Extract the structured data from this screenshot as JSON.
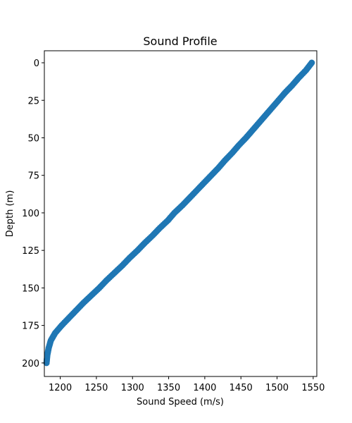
{
  "chart_data": {
    "type": "scatter",
    "title": "Sound Profile",
    "xlabel": "Sound Speed (m/s)",
    "ylabel": "Depth (m)",
    "xlim": [
      1178,
      1555
    ],
    "ylim": [
      209,
      -8
    ],
    "y_inverted": true,
    "grid": false,
    "legend": "none",
    "color": "#1f77b4",
    "xticks": [
      1200,
      1250,
      1300,
      1350,
      1400,
      1450,
      1500,
      1550
    ],
    "yticks": [
      0,
      25,
      50,
      75,
      100,
      125,
      150,
      175,
      200
    ],
    "series": [
      {
        "depth": [
          0,
          5,
          10,
          15,
          20,
          25,
          30,
          35,
          40,
          45,
          50,
          55,
          60,
          65,
          70,
          75,
          80,
          85,
          90,
          95,
          100,
          105,
          110,
          115,
          120,
          125,
          130,
          135,
          140,
          145,
          150,
          155,
          160,
          165,
          170,
          175,
          180,
          185,
          190,
          195,
          200
        ],
        "speed": [
          1548,
          1540,
          1530,
          1521,
          1511,
          1502,
          1493,
          1484,
          1475,
          1466,
          1457,
          1447,
          1438,
          1428,
          1419,
          1409,
          1399,
          1389,
          1379,
          1369,
          1358,
          1349,
          1338,
          1328,
          1317,
          1307,
          1296,
          1286,
          1275,
          1264,
          1254,
          1243,
          1232,
          1222,
          1212,
          1202,
          1193,
          1187,
          1184,
          1182,
          1181
        ]
      }
    ]
  }
}
